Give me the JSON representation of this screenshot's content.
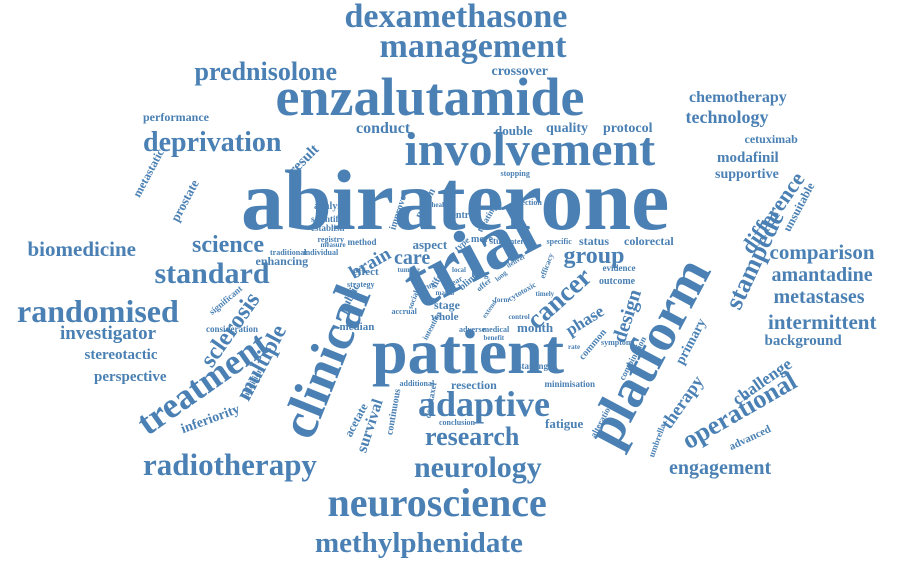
{
  "colors": {
    "ink": "#4a80b3",
    "background": "#ffffff"
  },
  "words": [
    {
      "text": "abiraterone"
    },
    {
      "text": "patient"
    },
    {
      "text": "enzalutamide"
    },
    {
      "text": "involvement"
    },
    {
      "text": "trial"
    },
    {
      "text": "platform"
    },
    {
      "text": "clinical"
    },
    {
      "text": "management"
    },
    {
      "text": "dexamethasone"
    },
    {
      "text": "neuroscience"
    },
    {
      "text": "treatment"
    },
    {
      "text": "adaptive"
    },
    {
      "text": "radiotherapy"
    },
    {
      "text": "neurology"
    },
    {
      "text": "deprivation"
    },
    {
      "text": "randomised"
    },
    {
      "text": "methylphenidate"
    },
    {
      "text": "standard"
    },
    {
      "text": "research"
    },
    {
      "text": "stampede"
    },
    {
      "text": "prednisolone"
    },
    {
      "text": "operational"
    },
    {
      "text": "cancer"
    },
    {
      "text": "science"
    },
    {
      "text": "biomedicine"
    },
    {
      "text": "multiple"
    },
    {
      "text": "sclerosis"
    },
    {
      "text": "comparison"
    },
    {
      "text": "difference"
    },
    {
      "text": "group"
    },
    {
      "text": "intermittent"
    },
    {
      "text": "metastases"
    },
    {
      "text": "amantadine"
    },
    {
      "text": "engagement"
    },
    {
      "text": "chemotherapy"
    },
    {
      "text": "technology"
    },
    {
      "text": "investigator"
    },
    {
      "text": "design"
    },
    {
      "text": "survival"
    },
    {
      "text": "challenge"
    },
    {
      "text": "therapy"
    },
    {
      "text": "phase"
    },
    {
      "text": "crossover"
    },
    {
      "text": "modafinil"
    },
    {
      "text": "care"
    },
    {
      "text": "perspective"
    },
    {
      "text": "conduct"
    },
    {
      "text": "stereotactic"
    },
    {
      "text": "background"
    },
    {
      "text": "supportive"
    },
    {
      "text": "inferiority"
    },
    {
      "text": "brain"
    },
    {
      "text": "quality"
    },
    {
      "text": "protocol"
    },
    {
      "text": "double"
    },
    {
      "text": "cetuximab"
    },
    {
      "text": "primary"
    },
    {
      "text": "prostate"
    },
    {
      "text": "result"
    },
    {
      "text": "performance"
    },
    {
      "text": "metastatic"
    },
    {
      "text": "unsuitable"
    },
    {
      "text": "month"
    },
    {
      "text": "fatigue"
    },
    {
      "text": "resection"
    },
    {
      "text": "aspect"
    },
    {
      "text": "colorectal"
    },
    {
      "text": "status"
    },
    {
      "text": "acetate"
    },
    {
      "text": "enhancing"
    },
    {
      "text": "advanced"
    },
    {
      "text": "public"
    },
    {
      "text": "stage"
    },
    {
      "text": "whole"
    },
    {
      "text": "median"
    },
    {
      "text": "outcome"
    },
    {
      "text": "evidence"
    },
    {
      "text": "centre"
    },
    {
      "text": "effect"
    },
    {
      "text": "person"
    },
    {
      "text": "improve"
    },
    {
      "text": "analysis"
    },
    {
      "text": "scientific"
    },
    {
      "text": "establish"
    },
    {
      "text": "continuous"
    },
    {
      "text": "minimisation"
    },
    {
      "text": "conclusion"
    },
    {
      "text": "starting"
    },
    {
      "text": "umbrella"
    },
    {
      "text": "alteration"
    },
    {
      "text": "combination"
    },
    {
      "text": "symptom"
    },
    {
      "text": "common"
    },
    {
      "text": "docetaxel"
    },
    {
      "text": "additional"
    },
    {
      "text": "addition"
    },
    {
      "text": "significant"
    },
    {
      "text": "consideration"
    },
    {
      "text": "traditional"
    },
    {
      "text": "individual"
    },
    {
      "text": "method"
    },
    {
      "text": "strategy"
    },
    {
      "text": "registry"
    },
    {
      "text": "lung"
    },
    {
      "text": "more"
    },
    {
      "text": "study"
    },
    {
      "text": "interim"
    },
    {
      "text": "specific"
    },
    {
      "text": "life"
    },
    {
      "text": "blind"
    },
    {
      "text": "type"
    },
    {
      "text": "treating"
    },
    {
      "text": "selection"
    },
    {
      "text": "stopping"
    },
    {
      "text": "health"
    },
    {
      "text": "cytotoxic"
    },
    {
      "text": "drug"
    },
    {
      "text": "accrual"
    },
    {
      "text": "adverse"
    },
    {
      "text": "medical"
    },
    {
      "text": "benefit"
    },
    {
      "text": "efficacy"
    },
    {
      "text": "measure"
    },
    {
      "text": "timely"
    },
    {
      "text": "intention"
    },
    {
      "text": "offer"
    },
    {
      "text": "year"
    },
    {
      "text": "social"
    },
    {
      "text": "extend"
    },
    {
      "text": "local"
    },
    {
      "text": "deliver"
    },
    {
      "text": "control"
    },
    {
      "text": "match"
    },
    {
      "text": "form"
    },
    {
      "text": "tumour"
    },
    {
      "text": "rate"
    },
    {
      "text": "long"
    }
  ]
}
